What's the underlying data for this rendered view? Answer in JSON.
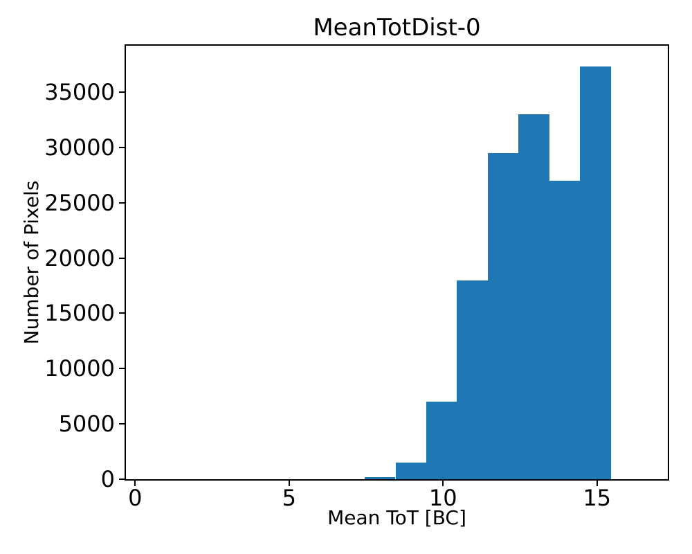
{
  "chart_data": {
    "type": "bar",
    "subtype": "histogram",
    "title": "MeanTotDist-0",
    "xlabel": "Mean ToT [BC]",
    "ylabel": "Number of Pixels",
    "bin_edges": [
      7.5,
      8.5,
      9.5,
      10.5,
      11.5,
      12.5,
      13.5,
      14.5,
      15.5
    ],
    "counts": [
      200,
      1500,
      7000,
      18000,
      29500,
      33000,
      27000,
      37300
    ],
    "x_ticks": [
      0,
      5,
      10,
      15
    ],
    "y_ticks": [
      0,
      5000,
      10000,
      15000,
      20000,
      25000,
      30000,
      35000
    ],
    "xlim": [
      -0.3,
      17.3
    ],
    "ylim": [
      0,
      39200
    ],
    "bar_color": "#1f77b4",
    "axis_color": "#000000",
    "background_color": "#ffffff",
    "grid": false,
    "legend_position": "none"
  }
}
